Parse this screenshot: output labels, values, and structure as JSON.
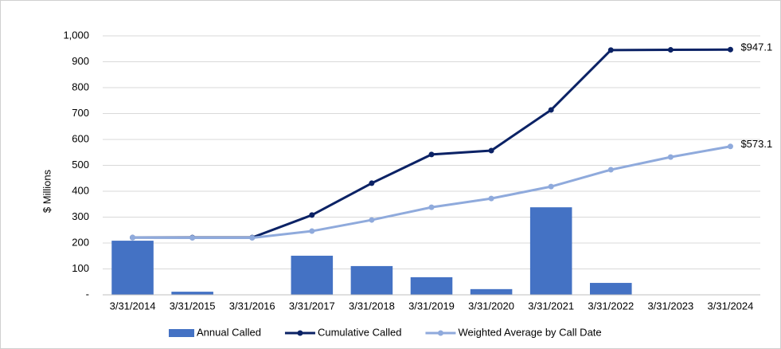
{
  "chart_data": {
    "type": "bar-line",
    "y_label": "$ Millions",
    "categories": [
      "3/31/2014",
      "3/31/2015",
      "3/31/2016",
      "3/31/2017",
      "3/31/2018",
      "3/31/2019",
      "3/31/2020",
      "3/31/2021",
      "3/31/2022",
      "3/31/2023",
      "3/31/2024"
    ],
    "series": [
      {
        "name": "Annual Called",
        "type": "bar",
        "color": "#4472c4",
        "values": [
          209,
          12,
          0,
          151,
          111,
          68,
          22,
          338,
          46,
          0,
          0
        ]
      },
      {
        "name": "Cumulative Called",
        "type": "line",
        "color": "#0b2265",
        "values": [
          221,
          221,
          221,
          308,
          431,
          542,
          557,
          714,
          945,
          946,
          947.1
        ],
        "value_labels": [
          null,
          null,
          null,
          null,
          null,
          null,
          null,
          null,
          null,
          null,
          "$947.1"
        ]
      },
      {
        "name": "Weighted Average by Call Date",
        "type": "line",
        "color": "#8faadc",
        "values": [
          221,
          220,
          220,
          246,
          289,
          338,
          372,
          418,
          483,
          532,
          573.1
        ],
        "value_labels": [
          null,
          null,
          null,
          null,
          null,
          null,
          null,
          null,
          null,
          null,
          "$573.1"
        ]
      }
    ],
    "ylim": [
      0,
      1000
    ],
    "yticks": [
      {
        "value": 0,
        "label": "-"
      },
      100,
      200,
      300,
      400,
      500,
      600,
      700,
      800,
      900,
      {
        "value": 1000,
        "label": "1,000"
      }
    ],
    "grid": true,
    "legend": "bottom"
  }
}
